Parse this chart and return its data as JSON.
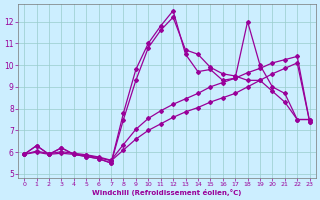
{
  "xlabel": "Windchill (Refroidissement éolien,°C)",
  "background_color": "#cceeff",
  "line_color": "#990099",
  "xlim": [
    -0.5,
    23.5
  ],
  "ylim": [
    4.8,
    12.8
  ],
  "xticks": [
    0,
    1,
    2,
    3,
    4,
    5,
    6,
    7,
    8,
    9,
    10,
    11,
    12,
    13,
    14,
    15,
    16,
    17,
    18,
    19,
    20,
    21,
    22,
    23
  ],
  "yticks": [
    5,
    6,
    7,
    8,
    9,
    10,
    11,
    12
  ],
  "grid_color": "#99cccc",
  "s1_x": [
    0,
    1,
    2,
    3,
    4,
    5,
    6,
    7,
    8,
    9,
    10,
    11,
    12,
    13,
    14,
    15,
    16,
    17,
    18,
    19,
    20,
    21,
    22,
    23
  ],
  "s1_y": [
    5.9,
    6.3,
    5.9,
    6.2,
    5.9,
    5.8,
    5.7,
    5.5,
    7.8,
    9.8,
    11.0,
    11.8,
    12.5,
    10.5,
    9.7,
    9.8,
    9.3,
    9.4,
    12.0,
    10.0,
    9.0,
    8.7,
    7.5,
    7.5
  ],
  "s2_x": [
    0,
    1,
    2,
    3,
    4,
    5,
    6,
    7,
    8,
    9,
    10,
    11,
    12,
    13,
    14,
    15,
    16,
    17,
    18,
    19,
    20,
    21,
    22,
    23
  ],
  "s2_y": [
    5.9,
    6.3,
    5.9,
    6.2,
    5.9,
    5.8,
    5.7,
    5.5,
    7.5,
    9.3,
    10.8,
    11.6,
    12.2,
    10.7,
    10.5,
    9.9,
    9.6,
    9.5,
    9.3,
    9.3,
    8.8,
    8.3,
    7.5,
    7.5
  ],
  "s3_x": [
    0,
    1,
    2,
    3,
    4,
    5,
    6,
    7,
    8,
    9,
    10,
    11,
    12,
    13,
    14,
    15,
    16,
    17,
    18,
    19,
    20,
    21,
    22,
    23
  ],
  "s3_y": [
    5.9,
    6.0,
    5.9,
    5.95,
    5.9,
    5.85,
    5.75,
    5.6,
    6.1,
    6.6,
    7.0,
    7.3,
    7.6,
    7.85,
    8.05,
    8.3,
    8.5,
    8.7,
    9.0,
    9.3,
    9.6,
    9.85,
    10.1,
    7.4
  ],
  "s4_x": [
    0,
    1,
    2,
    3,
    4,
    5,
    6,
    7,
    8,
    9,
    10,
    11,
    12,
    13,
    14,
    15,
    16,
    17,
    18,
    19,
    20,
    21,
    22,
    23
  ],
  "s4_y": [
    5.9,
    6.05,
    5.93,
    6.02,
    5.95,
    5.88,
    5.78,
    5.63,
    6.35,
    7.05,
    7.55,
    7.9,
    8.2,
    8.45,
    8.7,
    9.0,
    9.2,
    9.4,
    9.65,
    9.85,
    10.1,
    10.25,
    10.4,
    7.4
  ]
}
